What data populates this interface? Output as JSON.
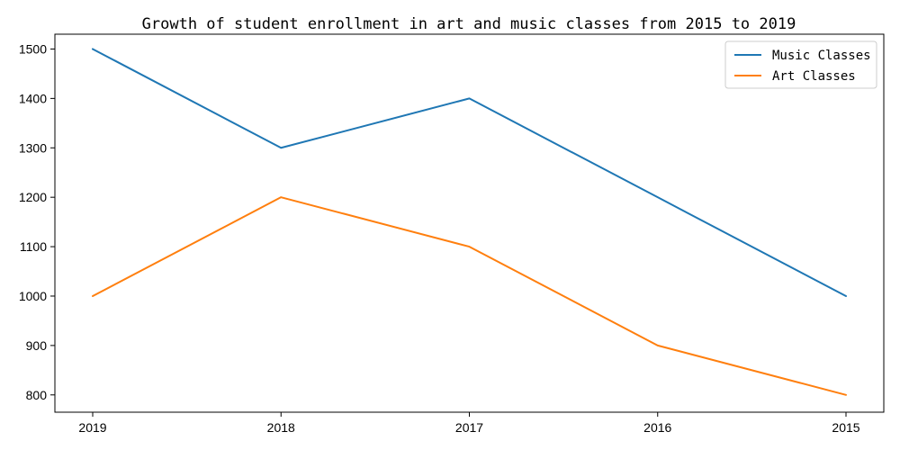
{
  "chart_data": {
    "type": "line",
    "title": "Growth of student enrollment in art and music classes from 2015 to 2019",
    "xlabel": "",
    "ylabel": "",
    "categories": [
      "2019",
      "2018",
      "2017",
      "2016",
      "2015"
    ],
    "ylim": [
      765,
      1530
    ],
    "yticks": [
      800,
      900,
      1000,
      1100,
      1200,
      1300,
      1400,
      1500
    ],
    "grid": false,
    "legend_position": "top-right",
    "series": [
      {
        "name": "Music Classes",
        "color": "#1f77b4",
        "values": [
          1500,
          1300,
          1400,
          1200,
          1000
        ]
      },
      {
        "name": "Art Classes",
        "color": "#ff7f0e",
        "values": [
          1000,
          1200,
          1100,
          900,
          800
        ]
      }
    ]
  }
}
